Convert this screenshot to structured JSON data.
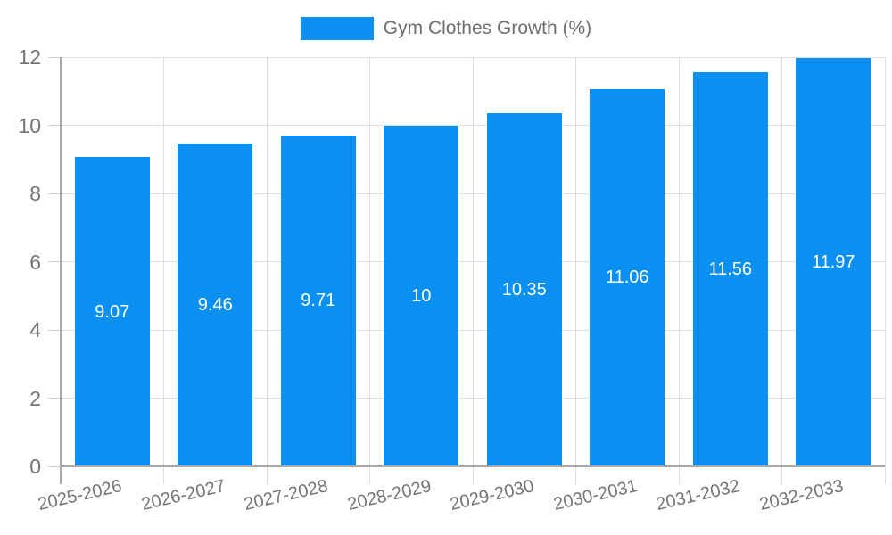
{
  "legend": {
    "label": "Gym Clothes Growth (%)"
  },
  "chart_data": {
    "type": "bar",
    "title": "Gym Clothes Growth (%)",
    "categories": [
      "2025-2026",
      "2026-2027",
      "2027-2028",
      "2028-2029",
      "2029-2030",
      "2030-2031",
      "2031-2032",
      "2032-2033"
    ],
    "series": [
      {
        "name": "Gym Clothes Growth (%)",
        "values": [
          9.07,
          9.46,
          9.71,
          10,
          10.35,
          11.06,
          11.56,
          11.97
        ]
      }
    ],
    "value_labels": [
      "9.07",
      "9.46",
      "9.71",
      "10",
      "10.35",
      "11.06",
      "11.56",
      "11.97"
    ],
    "xlabel": "",
    "ylabel": "",
    "ylim": [
      0,
      12
    ],
    "yticks": [
      0,
      2,
      4,
      6,
      8,
      10,
      12
    ],
    "ytick_labels": [
      "0",
      "2",
      "4",
      "6",
      "8",
      "10",
      "12"
    ],
    "grid": true,
    "legend_position": "top-center",
    "bar_color": "#0a90f0",
    "value_label_color": "#ffffff",
    "axis_text_color": "#757575",
    "grid_color": "#e0e0e0",
    "axis_line_color": "#a8a8a8"
  }
}
